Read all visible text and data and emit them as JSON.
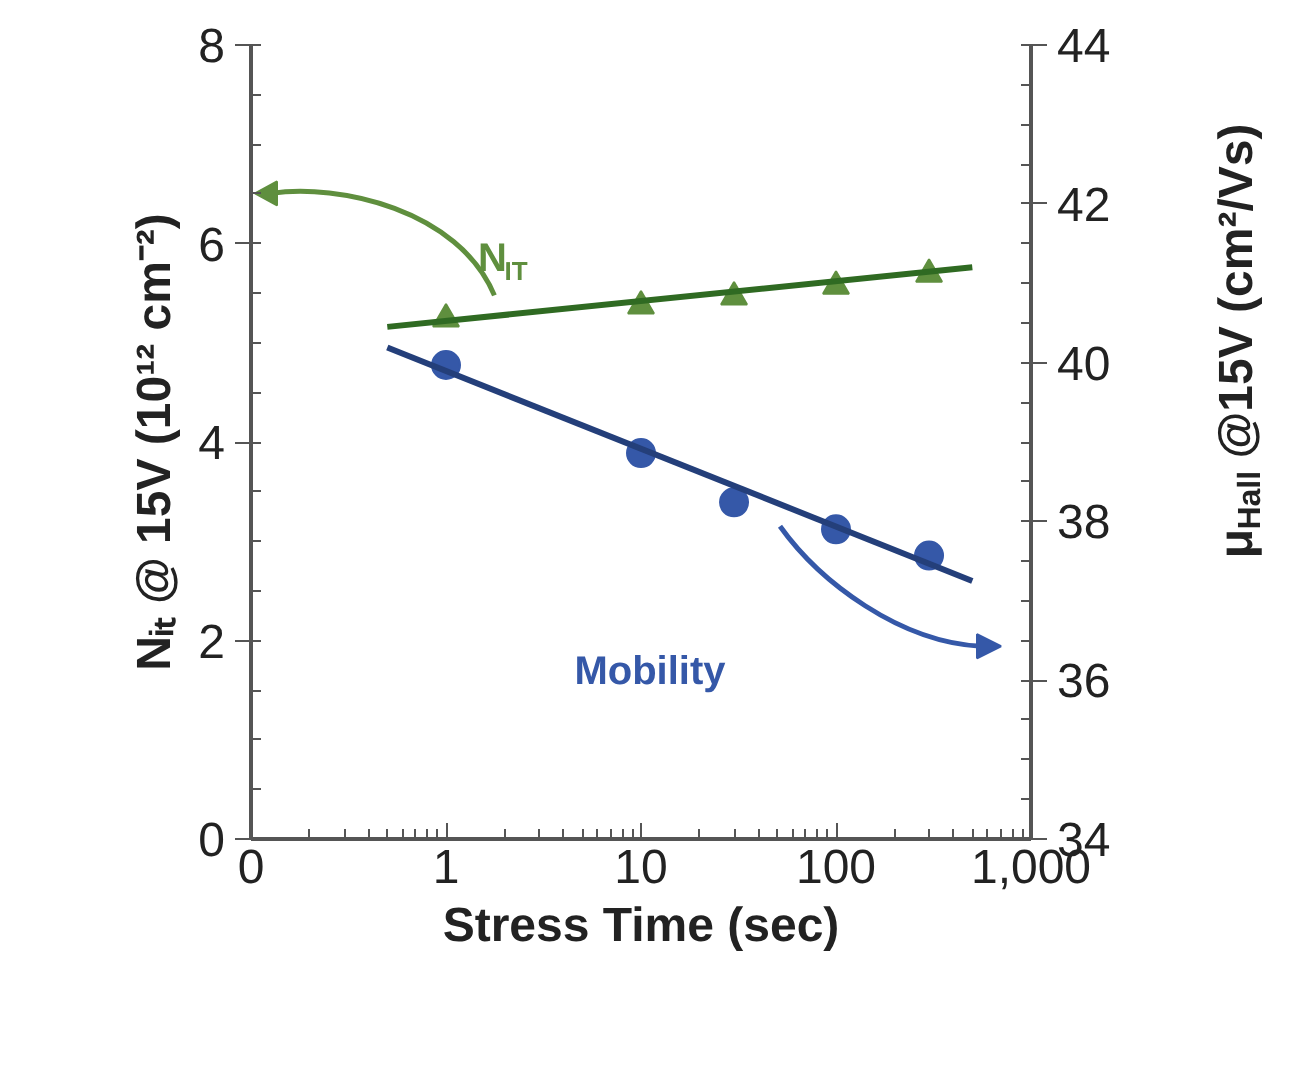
{
  "chart_data": {
    "type": "scatter",
    "xlabel": "Stress Time (sec)",
    "ylabel": "Nᵢₜ @ 15V (10¹² cm⁻²)",
    "y2label": "μ$_{Hall}$ @15V (cm²/Vs)",
    "log": "x",
    "xlim": [
      0.1,
      1000
    ],
    "xticks": [
      {
        "value": 0.1,
        "label": "0"
      },
      1,
      10,
      100,
      {
        "value": 1000,
        "label": "1,000"
      }
    ],
    "ylim": [
      0,
      8
    ],
    "yticks": [
      0,
      2,
      4,
      6,
      8
    ],
    "y2lim": [
      34,
      44
    ],
    "y2ticks": [
      34,
      36,
      38,
      40,
      42,
      44
    ],
    "grid": false,
    "series": [
      {
        "marker": "triangle",
        "color": "#5f8f3e",
        "x": [
          1,
          10,
          30,
          100,
          300
        ],
        "values": [
          5.24,
          5.37,
          5.46,
          5.57,
          5.69
        ]
      },
      {
        "type": "line",
        "color": "#2f6a22",
        "x": [
          0.5,
          500
        ],
        "values": [
          5.16,
          5.76
        ]
      },
      {
        "marker": "circle",
        "axis": "y2",
        "color": "#3558a8",
        "x": [
          1,
          10,
          30,
          100,
          300
        ],
        "values": [
          39.97,
          38.86,
          38.24,
          37.9,
          37.57
        ]
      },
      {
        "type": "line",
        "axis": "y2",
        "color": "#243f7a",
        "x": [
          0.5,
          500
        ],
        "values": [
          40.19,
          37.25
        ]
      }
    ],
    "annotations": [
      "N$_{IT}$",
      "Mobility"
    ]
  }
}
